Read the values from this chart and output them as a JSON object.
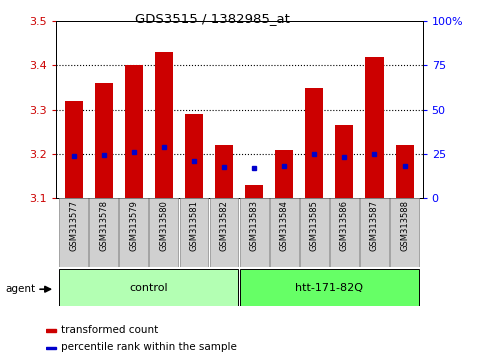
{
  "title": "GDS3515 / 1382985_at",
  "samples": [
    "GSM313577",
    "GSM313578",
    "GSM313579",
    "GSM313580",
    "GSM313581",
    "GSM313582",
    "GSM313583",
    "GSM313584",
    "GSM313585",
    "GSM313586",
    "GSM313587",
    "GSM313588"
  ],
  "red_values": [
    3.32,
    3.36,
    3.4,
    3.43,
    3.29,
    3.22,
    3.13,
    3.21,
    3.35,
    3.265,
    3.42,
    3.22
  ],
  "blue_values": [
    3.195,
    3.197,
    3.205,
    3.215,
    3.185,
    3.17,
    3.168,
    3.172,
    3.2,
    3.193,
    3.2,
    3.172
  ],
  "y_min": 3.1,
  "y_max": 3.5,
  "y_ticks": [
    3.1,
    3.2,
    3.3,
    3.4,
    3.5
  ],
  "right_y_ticks": [
    0,
    25,
    50,
    75,
    100
  ],
  "right_y_labels": [
    "0",
    "25",
    "50",
    "75",
    "100%"
  ],
  "groups": [
    {
      "label": "control",
      "start": 0,
      "end": 5,
      "color": "#b3ffb3"
    },
    {
      "label": "htt-171-82Q",
      "start": 6,
      "end": 11,
      "color": "#66ff66"
    }
  ],
  "agent_label": "agent",
  "legend_items": [
    {
      "label": "transformed count",
      "color": "#cc0000"
    },
    {
      "label": "percentile rank within the sample",
      "color": "#0000cc"
    }
  ],
  "bar_color": "#cc0000",
  "dot_color": "#0000cc",
  "bar_width": 0.6,
  "background_color": "#ffffff",
  "label_bg": "#d0d0d0",
  "ylabel_color": "#cc0000",
  "grid_lines": [
    3.2,
    3.3,
    3.4
  ]
}
